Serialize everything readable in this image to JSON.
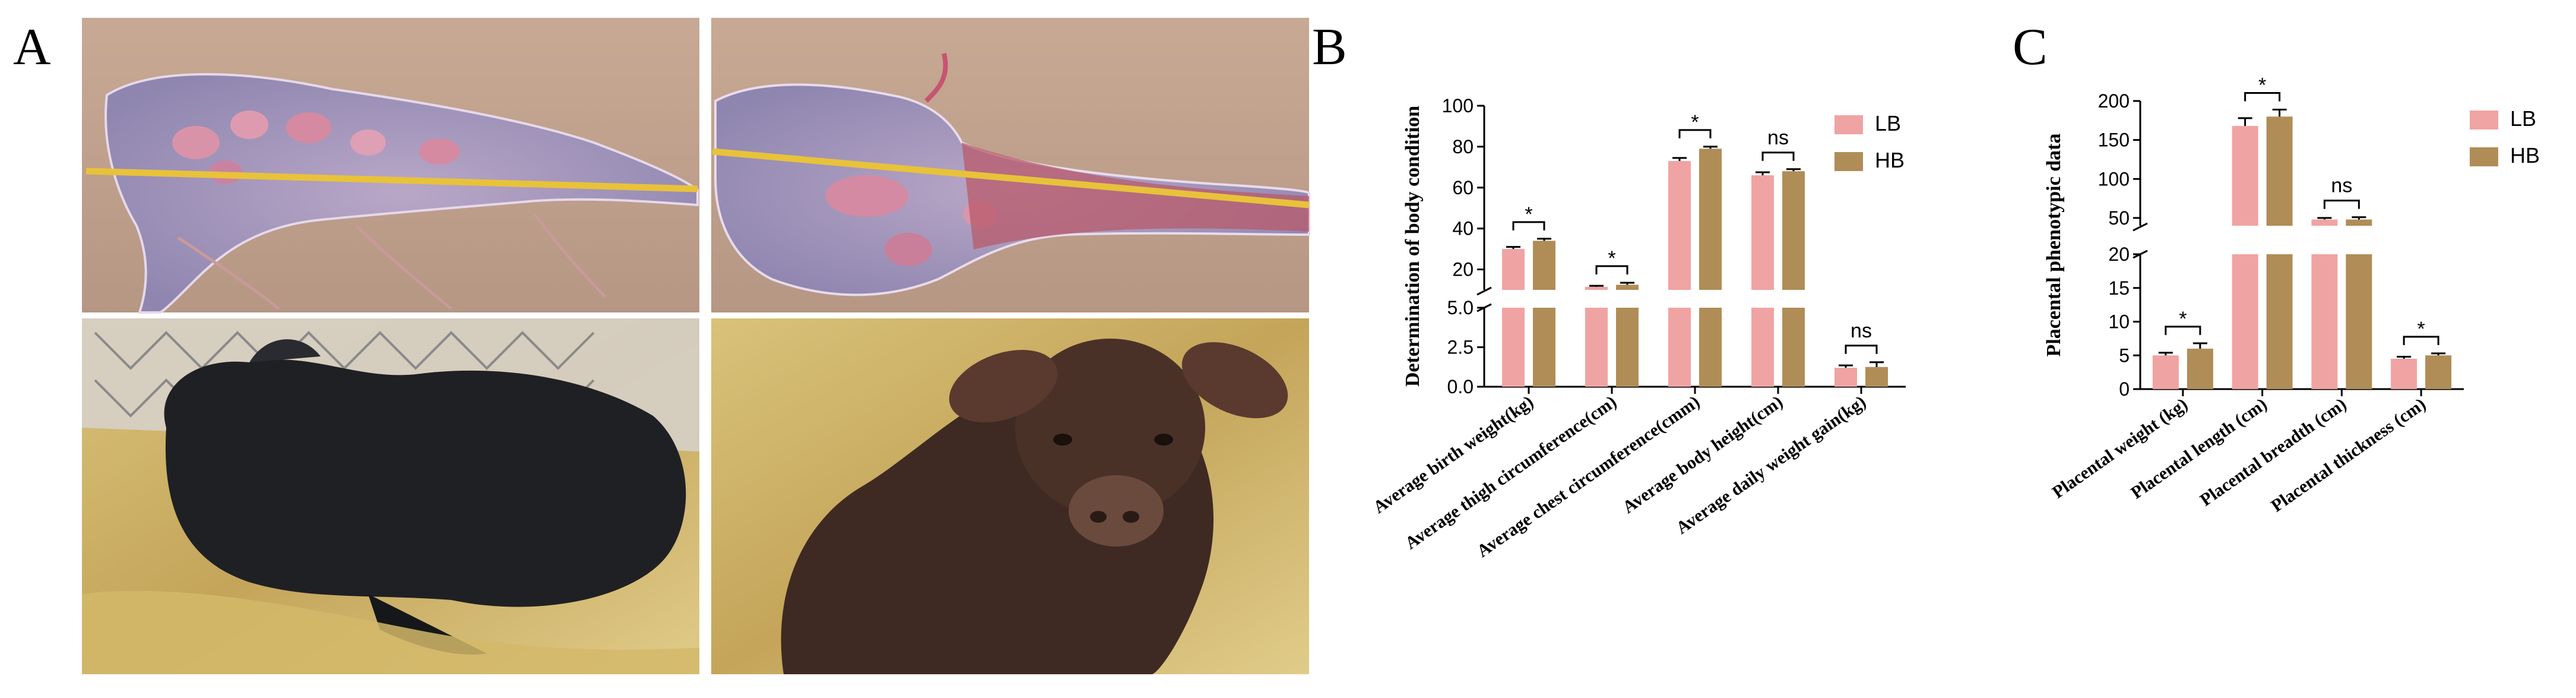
{
  "panel_a": {
    "letter": "A",
    "photos": [
      {
        "name": "placenta-lb",
        "subject": "placenta"
      },
      {
        "name": "placenta-hb",
        "subject": "placenta"
      },
      {
        "name": "calf-black",
        "subject": "calf"
      },
      {
        "name": "calf-brown",
        "subject": "calf"
      }
    ]
  },
  "colors": {
    "LB": "#f0a3a3",
    "HB": "#b08d57"
  },
  "chart_data": [
    {
      "panel": "B",
      "type": "bar",
      "title": "",
      "xlabel": "",
      "ylabel": "Determination of body condition",
      "categories": [
        "Average birth weight(kg)",
        "Average thigh circumference(cm)",
        "Average chest circumference(cmm)",
        "Average body height(cm)",
        "Average daily weight gain(kg)"
      ],
      "series": [
        {
          "name": "LB",
          "values": [
            30,
            11.5,
            73,
            66,
            1.2
          ],
          "errors": [
            1,
            0.5,
            1.5,
            1.5,
            0.15
          ]
        },
        {
          "name": "HB",
          "values": [
            34,
            12.5,
            79,
            68,
            1.25
          ],
          "errors": [
            1,
            1,
            1,
            1,
            0.3
          ]
        }
      ],
      "significance": [
        "*",
        "*",
        "*",
        "ns",
        "ns"
      ],
      "axis_break": {
        "lower": [
          0,
          5
        ],
        "upper": [
          10,
          100
        ]
      },
      "yticks_lower": [
        "0.0",
        "2.5",
        "5.0"
      ],
      "yticks_upper": [
        "20",
        "40",
        "60",
        "80",
        "100"
      ],
      "legend": "top-right",
      "grid": false
    },
    {
      "panel": "C",
      "type": "bar",
      "title": "",
      "xlabel": "",
      "ylabel": "Placental phenotypic data",
      "categories": [
        "Placental weight (kg)",
        "Placental length (cm)",
        "Placental breadth (cm)",
        "Placental thickness (cm)"
      ],
      "series": [
        {
          "name": "LB",
          "values": [
            5,
            168,
            48,
            4.5
          ],
          "errors": [
            0.4,
            10,
            2,
            0.3
          ]
        },
        {
          "name": "HB",
          "values": [
            6,
            180,
            48,
            5
          ],
          "errors": [
            0.8,
            9,
            3,
            0.3
          ]
        }
      ],
      "significance": [
        "*",
        "*",
        "ns",
        "*"
      ],
      "axis_break": {
        "lower": [
          0,
          20
        ],
        "upper": [
          40,
          200
        ]
      },
      "yticks_lower": [
        "0",
        "5",
        "10",
        "15",
        "20"
      ],
      "yticks_upper": [
        "50",
        "100",
        "150",
        "200"
      ],
      "legend": "top-right",
      "grid": false
    }
  ]
}
